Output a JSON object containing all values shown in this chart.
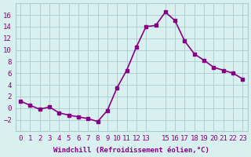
{
  "x": [
    0,
    1,
    2,
    3,
    4,
    5,
    6,
    7,
    8,
    9,
    10,
    11,
    12,
    13,
    14,
    15,
    16,
    17,
    18,
    19,
    20,
    21,
    22,
    23
  ],
  "y": [
    1.2,
    0.5,
    -0.2,
    0.2,
    -0.8,
    -1.2,
    -1.5,
    -1.8,
    -2.3,
    -0.4,
    3.5,
    6.5,
    10.5,
    14.0,
    14.2,
    16.5,
    15.0,
    11.5,
    9.3,
    8.2,
    7.0,
    6.5,
    6.0,
    5.0
  ],
  "line_color": "#880088",
  "marker": "s",
  "marker_size": 3,
  "bg_color": "#d8f0f0",
  "grid_color": "#aacccc",
  "xlabel": "Windchill (Refroidissement éolien,°C)",
  "xlabel_color": "#880088",
  "tick_color": "#880088",
  "ylim": [
    -4,
    18
  ],
  "yticks": [
    -2,
    0,
    2,
    4,
    6,
    8,
    10,
    12,
    14,
    16
  ],
  "xticks": [
    0,
    1,
    2,
    3,
    4,
    5,
    6,
    7,
    8,
    9,
    10,
    11,
    12,
    13,
    15,
    16,
    17,
    18,
    19,
    20,
    21,
    22,
    23
  ],
  "xtick_labels": [
    "0",
    "1",
    "2",
    "3",
    "4",
    "5",
    "6",
    "7",
    "8",
    "9",
    "10",
    "11",
    "12",
    "13",
    "15",
    "16",
    "17",
    "18",
    "19",
    "20",
    "21",
    "22",
    "23"
  ],
  "title_color": "#880088",
  "title_fontsize": 7,
  "font_size": 6.5,
  "linewidth": 1.2
}
